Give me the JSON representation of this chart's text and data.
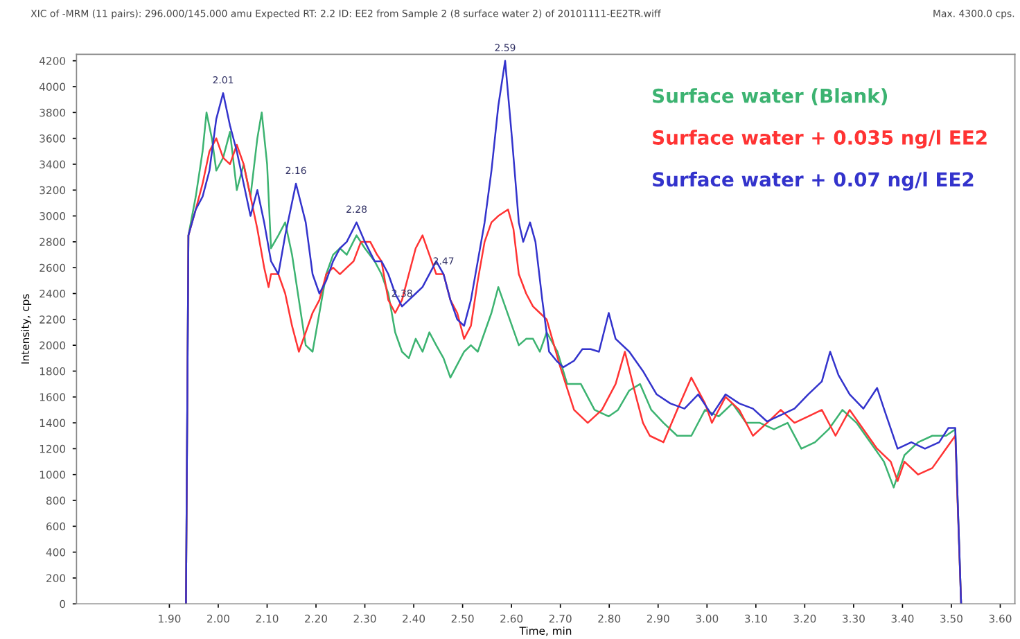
{
  "chart_data": {
    "type": "line",
    "title": "XIC of -MRM (11 pairs): 296.000/145.000 amu Expected RT: 2.2 ID: EE2 from Sample 2 (8 surface water 2) of 20101111-EE2TR.wiff",
    "subtitle": "Max. 4300.0 cps.",
    "xlabel": "Time, min",
    "ylabel": "Intensity, cps",
    "xlim": [
      1.71,
      3.63
    ],
    "xticks": [
      {
        "value": 1.9,
        "label": "1.90"
      },
      {
        "value": 2.0,
        "label": "2.00"
      },
      {
        "value": 2.1,
        "label": "2.10"
      },
      {
        "value": 2.2,
        "label": "2.20"
      },
      {
        "value": 2.3,
        "label": "2.30"
      },
      {
        "value": 2.4,
        "label": "2.40"
      },
      {
        "value": 2.5,
        "label": "2.50"
      },
      {
        "value": 2.6,
        "label": "2.60"
      },
      {
        "value": 2.7,
        "label": "2.70"
      },
      {
        "value": 2.8,
        "label": "2.80"
      },
      {
        "value": 2.9,
        "label": "2.90"
      },
      {
        "value": 3.0,
        "label": "3.00"
      },
      {
        "value": 3.1,
        "label": "3.10"
      },
      {
        "value": 3.2,
        "label": "3.20"
      },
      {
        "value": 3.3,
        "label": "3.30"
      },
      {
        "value": 3.4,
        "label": "3.40"
      },
      {
        "value": 3.5,
        "label": "3.50"
      },
      {
        "value": 3.6,
        "label": "3.60"
      }
    ],
    "ylim": [
      0,
      4250
    ],
    "yticks": [
      0,
      200,
      400,
      600,
      800,
      1000,
      1200,
      1400,
      1600,
      1800,
      2000,
      2200,
      2400,
      2600,
      2800,
      3000,
      3200,
      3400,
      3600,
      3800,
      4000,
      4200
    ],
    "grid": false,
    "legend": "top right",
    "marker": "none",
    "line_style": "solid",
    "series": [
      {
        "name": "Surface water (Blank)",
        "color": "#3cb371",
        "x": [
          1.934,
          1.939,
          1.954,
          1.968,
          1.976,
          1.987,
          1.996,
          2.01,
          2.024,
          2.038,
          2.052,
          2.066,
          2.08,
          2.089,
          2.1,
          2.108,
          2.123,
          2.137,
          2.151,
          2.165,
          2.179,
          2.193,
          2.207,
          2.221,
          2.235,
          2.249,
          2.263,
          2.283,
          2.3,
          2.32,
          2.334,
          2.348,
          2.362,
          2.376,
          2.39,
          2.404,
          2.418,
          2.432,
          2.446,
          2.461,
          2.475,
          2.489,
          2.503,
          2.517,
          2.531,
          2.545,
          2.559,
          2.573,
          2.587,
          2.601,
          2.615,
          2.63,
          2.644,
          2.658,
          2.672,
          2.694,
          2.714,
          2.742,
          2.77,
          2.799,
          2.818,
          2.841,
          2.863,
          2.886,
          2.911,
          2.939,
          2.968,
          2.996,
          3.024,
          3.052,
          3.08,
          3.108,
          3.137,
          3.165,
          3.193,
          3.221,
          3.249,
          3.277,
          3.306,
          3.334,
          3.362,
          3.382,
          3.404,
          3.432,
          3.461,
          3.489,
          3.508,
          3.52
        ],
        "values": [
          0,
          2850,
          3150,
          3500,
          3800,
          3600,
          3350,
          3450,
          3650,
          3200,
          3400,
          3150,
          3600,
          3800,
          3400,
          2750,
          2850,
          2950,
          2700,
          2350,
          2000,
          1950,
          2250,
          2550,
          2700,
          2750,
          2700,
          2850,
          2750,
          2650,
          2550,
          2400,
          2100,
          1950,
          1900,
          2050,
          1950,
          2100,
          2000,
          1900,
          1750,
          1850,
          1950,
          2000,
          1950,
          2100,
          2250,
          2450,
          2300,
          2150,
          2000,
          2050,
          2050,
          1950,
          2100,
          1950,
          1700,
          1700,
          1500,
          1450,
          1500,
          1650,
          1700,
          1500,
          1400,
          1300,
          1300,
          1500,
          1450,
          1550,
          1400,
          1400,
          1350,
          1400,
          1200,
          1250,
          1350,
          1500,
          1400,
          1250,
          1100,
          900,
          1150,
          1250,
          1300,
          1300,
          1350,
          0
        ]
      },
      {
        "name": "Surface water + 0.035 ng/l EE2",
        "color": "#ff3333",
        "x": [
          1.934,
          1.939,
          1.954,
          1.968,
          1.982,
          1.996,
          2.01,
          2.024,
          2.038,
          2.052,
          2.066,
          2.08,
          2.094,
          2.103,
          2.108,
          2.123,
          2.137,
          2.151,
          2.165,
          2.179,
          2.193,
          2.207,
          2.221,
          2.235,
          2.249,
          2.263,
          2.277,
          2.292,
          2.311,
          2.325,
          2.334,
          2.348,
          2.362,
          2.376,
          2.39,
          2.404,
          2.418,
          2.432,
          2.446,
          2.461,
          2.475,
          2.489,
          2.503,
          2.517,
          2.531,
          2.545,
          2.559,
          2.573,
          2.593,
          2.604,
          2.615,
          2.63,
          2.644,
          2.658,
          2.672,
          2.7,
          2.728,
          2.756,
          2.785,
          2.813,
          2.832,
          2.855,
          2.869,
          2.883,
          2.911,
          2.939,
          2.968,
          2.996,
          3.01,
          3.038,
          3.066,
          3.094,
          3.123,
          3.151,
          3.179,
          3.207,
          3.235,
          3.263,
          3.292,
          3.32,
          3.348,
          3.376,
          3.39,
          3.404,
          3.432,
          3.461,
          3.489,
          3.508,
          3.52
        ],
        "values": [
          0,
          2850,
          3050,
          3250,
          3500,
          3600,
          3450,
          3400,
          3550,
          3400,
          3150,
          2900,
          2600,
          2450,
          2550,
          2550,
          2400,
          2150,
          1950,
          2100,
          2250,
          2350,
          2550,
          2600,
          2550,
          2600,
          2650,
          2800,
          2800,
          2700,
          2650,
          2350,
          2250,
          2350,
          2550,
          2750,
          2850,
          2700,
          2550,
          2550,
          2350,
          2250,
          2050,
          2150,
          2500,
          2800,
          2950,
          3000,
          3050,
          2900,
          2550,
          2400,
          2300,
          2250,
          2200,
          1830,
          1500,
          1400,
          1500,
          1700,
          1950,
          1600,
          1400,
          1300,
          1250,
          1500,
          1750,
          1550,
          1400,
          1600,
          1500,
          1300,
          1400,
          1500,
          1400,
          1450,
          1500,
          1300,
          1500,
          1350,
          1200,
          1100,
          950,
          1100,
          1000,
          1050,
          1200,
          1300,
          0
        ]
      },
      {
        "name": "Surface water + 0.07 ng/l EE2",
        "color": "#3333cc",
        "x": [
          1.934,
          1.939,
          1.954,
          1.968,
          1.982,
          1.996,
          2.01,
          2.024,
          2.038,
          2.052,
          2.066,
          2.08,
          2.094,
          2.108,
          2.123,
          2.137,
          2.159,
          2.179,
          2.193,
          2.207,
          2.221,
          2.235,
          2.249,
          2.263,
          2.283,
          2.3,
          2.32,
          2.334,
          2.348,
          2.362,
          2.376,
          2.39,
          2.404,
          2.418,
          2.446,
          2.461,
          2.475,
          2.489,
          2.503,
          2.517,
          2.531,
          2.545,
          2.559,
          2.573,
          2.587,
          2.601,
          2.615,
          2.624,
          2.638,
          2.649,
          2.663,
          2.677,
          2.692,
          2.706,
          2.728,
          2.745,
          2.762,
          2.779,
          2.799,
          2.813,
          2.841,
          2.869,
          2.897,
          2.925,
          2.954,
          2.982,
          3.01,
          3.038,
          3.066,
          3.094,
          3.123,
          3.151,
          3.179,
          3.207,
          3.235,
          3.252,
          3.269,
          3.292,
          3.32,
          3.348,
          3.362,
          3.39,
          3.418,
          3.446,
          3.475,
          3.494,
          3.508,
          3.52
        ],
        "values": [
          0,
          2850,
          3050,
          3150,
          3350,
          3750,
          3950,
          3700,
          3500,
          3250,
          3000,
          3200,
          2950,
          2650,
          2550,
          2850,
          3250,
          2950,
          2550,
          2400,
          2500,
          2650,
          2750,
          2800,
          2950,
          2800,
          2650,
          2650,
          2550,
          2400,
          2300,
          2350,
          2400,
          2450,
          2650,
          2550,
          2350,
          2200,
          2150,
          2350,
          2650,
          2950,
          3350,
          3850,
          4200,
          3600,
          2950,
          2800,
          2950,
          2800,
          2350,
          1950,
          1880,
          1830,
          1880,
          1970,
          1970,
          1950,
          2250,
          2050,
          1950,
          1800,
          1620,
          1550,
          1510,
          1620,
          1460,
          1620,
          1550,
          1510,
          1410,
          1460,
          1510,
          1620,
          1720,
          1950,
          1770,
          1620,
          1510,
          1670,
          1510,
          1200,
          1250,
          1200,
          1250,
          1360,
          1360,
          0
        ]
      }
    ],
    "annotations": [
      {
        "text": "2.01",
        "x": 2.01,
        "y": 3950
      },
      {
        "text": "2.16",
        "x": 2.159,
        "y": 3250
      },
      {
        "text": "2.28",
        "x": 2.283,
        "y": 2950
      },
      {
        "text": "2.38",
        "x": 2.376,
        "y": 2300
      },
      {
        "text": "2.47",
        "x": 2.461,
        "y": 2550
      },
      {
        "text": "2.59",
        "x": 2.587,
        "y": 4200
      }
    ]
  }
}
